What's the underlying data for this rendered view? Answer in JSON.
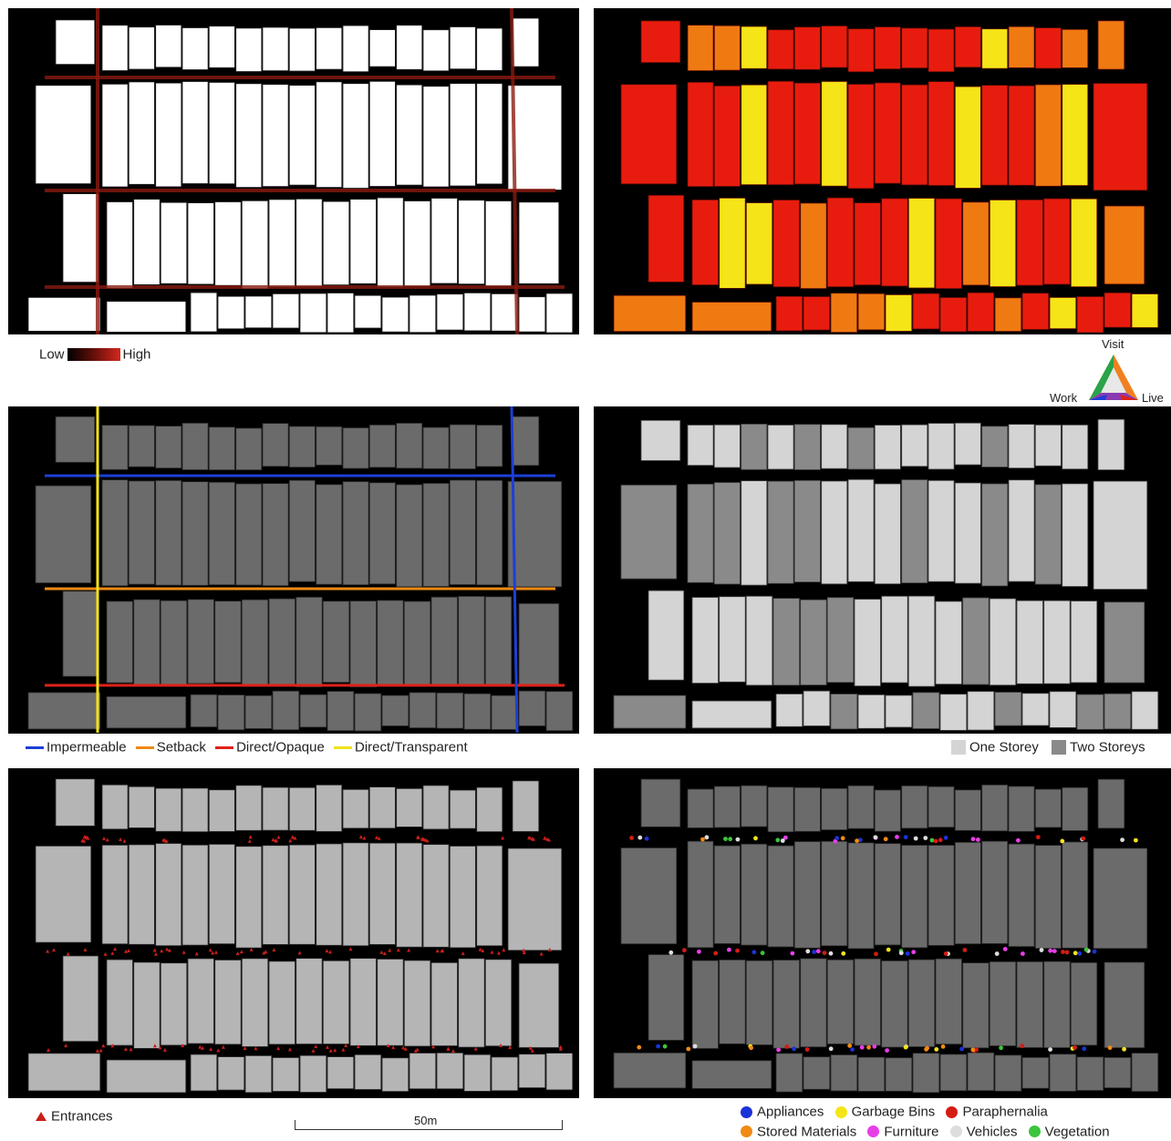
{
  "panels": [
    {
      "id": "activity-heat",
      "fill": "#ffffff",
      "edge": "heat"
    },
    {
      "id": "land-use",
      "fill": "#e81c0e",
      "edge": "none"
    },
    {
      "id": "frontage-types",
      "fill": "#6b6b6b",
      "edge": "frontage"
    },
    {
      "id": "building-height",
      "fill": "#d8d8d8",
      "edge": "none"
    },
    {
      "id": "entrances",
      "fill": "#b5b5b5",
      "edge": "entrances"
    },
    {
      "id": "street-objects",
      "fill": "#6b6b6b",
      "edge": "objects"
    }
  ],
  "legend_heat": {
    "low": "Low",
    "high": "High"
  },
  "legend_use": {
    "visit": "Visit",
    "work": "Work",
    "live": "Live"
  },
  "legend_frontage": [
    {
      "label": "Impermeable",
      "color": "#1d3fd6"
    },
    {
      "label": "Setback",
      "color": "#f08a14"
    },
    {
      "label": "Direct/Opaque",
      "color": "#e02218"
    },
    {
      "label": "Direct/Transparent",
      "color": "#f0e21a"
    }
  ],
  "legend_storeys": [
    {
      "label": "One Storey",
      "color": "#d4d4d4"
    },
    {
      "label": "Two Storeys",
      "color": "#8a8a8a"
    }
  ],
  "legend_entrances": {
    "label": "Entrances",
    "color": "#c8201a"
  },
  "scale": {
    "label": "50m"
  },
  "legend_objects": [
    {
      "label": "Appliances",
      "color": "#1a33d8"
    },
    {
      "label": "Garbage Bins",
      "color": "#f5e418"
    },
    {
      "label": "Paraphernalia",
      "color": "#d41c14"
    },
    {
      "label": "Stored Materials",
      "color": "#f08a14"
    },
    {
      "label": "Furniture",
      "color": "#e83ee8"
    },
    {
      "label": "Vehicles",
      "color": "#dddddd"
    },
    {
      "label": "Vegetation",
      "color": "#3cc43c"
    }
  ]
}
